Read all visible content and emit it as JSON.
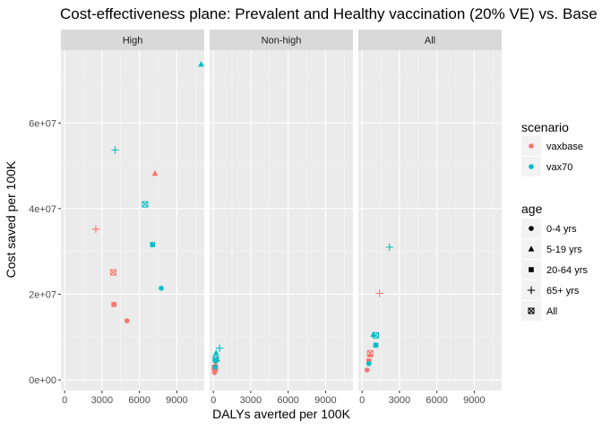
{
  "chart_data": {
    "type": "scatter",
    "title": "Cost-effectiveness plane: Prevalent and Healthy vaccination (20% VE) vs. Base",
    "xlabel": "DALYs averted per 100K",
    "ylabel": "Cost saved per 100K",
    "facets": [
      "High",
      "Non-high",
      "All"
    ],
    "xlim": [
      -300,
      11200
    ],
    "ylim": [
      -2500000,
      77000000
    ],
    "x_ticks": [
      0,
      3000,
      6000,
      9000
    ],
    "x_tick_labels": [
      "0",
      "3000",
      "6000",
      "9000"
    ],
    "y_ticks": [
      0,
      20000000,
      40000000,
      60000000
    ],
    "y_tick_labels": [
      "0e+00",
      "2e+07",
      "4e+07",
      "6e+07"
    ],
    "grid": true,
    "legend_position": "right",
    "legends": {
      "scenario": {
        "title": "scenario",
        "items": [
          {
            "label": "vaxbase",
            "color": "#F8766D"
          },
          {
            "label": "vax70",
            "color": "#00BFC4"
          }
        ]
      },
      "age": {
        "title": "age",
        "items": [
          {
            "label": "0-4 yrs",
            "shape": "circle"
          },
          {
            "label": "5-19 yrs",
            "shape": "triangle"
          },
          {
            "label": "20-64 yrs",
            "shape": "square"
          },
          {
            "label": "65+ yrs",
            "shape": "plus"
          },
          {
            "label": "All",
            "shape": "boxx"
          }
        ]
      }
    },
    "points": [
      {
        "facet": "High",
        "scenario": "vaxbase",
        "age": "0-4 yrs",
        "x": 5000,
        "y": 13800000
      },
      {
        "facet": "High",
        "scenario": "vaxbase",
        "age": "5-19 yrs",
        "x": 7250,
        "y": 48200000
      },
      {
        "facet": "High",
        "scenario": "vaxbase",
        "age": "20-64 yrs",
        "x": 3950,
        "y": 17600000
      },
      {
        "facet": "High",
        "scenario": "vaxbase",
        "age": "65+ yrs",
        "x": 2500,
        "y": 35200000
      },
      {
        "facet": "High",
        "scenario": "vaxbase",
        "age": "All",
        "x": 3900,
        "y": 25100000
      },
      {
        "facet": "High",
        "scenario": "vax70",
        "age": "0-4 yrs",
        "x": 7750,
        "y": 21400000
      },
      {
        "facet": "High",
        "scenario": "vax70",
        "age": "5-19 yrs",
        "x": 10950,
        "y": 73700000
      },
      {
        "facet": "High",
        "scenario": "vax70",
        "age": "20-64 yrs",
        "x": 7050,
        "y": 31600000
      },
      {
        "facet": "High",
        "scenario": "vax70",
        "age": "65+ yrs",
        "x": 4050,
        "y": 53700000
      },
      {
        "facet": "High",
        "scenario": "vax70",
        "age": "All",
        "x": 6450,
        "y": 41000000
      },
      {
        "facet": "Non-high",
        "scenario": "vaxbase",
        "age": "0-4 yrs",
        "x": 100,
        "y": 1700000
      },
      {
        "facet": "Non-high",
        "scenario": "vaxbase",
        "age": "5-19 yrs",
        "x": 150,
        "y": 3400000
      },
      {
        "facet": "Non-high",
        "scenario": "vaxbase",
        "age": "20-64 yrs",
        "x": 120,
        "y": 2400000
      },
      {
        "facet": "Non-high",
        "scenario": "vaxbase",
        "age": "65+ yrs",
        "x": 250,
        "y": 4500000
      },
      {
        "facet": "Non-high",
        "scenario": "vaxbase",
        "age": "All",
        "x": 130,
        "y": 2800000
      },
      {
        "facet": "Non-high",
        "scenario": "vax70",
        "age": "0-4 yrs",
        "x": 150,
        "y": 3000000
      },
      {
        "facet": "Non-high",
        "scenario": "vax70",
        "age": "5-19 yrs",
        "x": 220,
        "y": 6300000
      },
      {
        "facet": "Non-high",
        "scenario": "vax70",
        "age": "20-64 yrs",
        "x": 180,
        "y": 4500000
      },
      {
        "facet": "Non-high",
        "scenario": "vax70",
        "age": "65+ yrs",
        "x": 500,
        "y": 7400000
      },
      {
        "facet": "Non-high",
        "scenario": "vax70",
        "age": "All",
        "x": 200,
        "y": 4900000
      },
      {
        "facet": "All",
        "scenario": "vaxbase",
        "age": "0-4 yrs",
        "x": 400,
        "y": 2300000
      },
      {
        "facet": "All",
        "scenario": "vaxbase",
        "age": "5-19 yrs",
        "x": 650,
        "y": 5800000
      },
      {
        "facet": "All",
        "scenario": "vaxbase",
        "age": "20-64 yrs",
        "x": 550,
        "y": 4400000
      },
      {
        "facet": "All",
        "scenario": "vaxbase",
        "age": "65+ yrs",
        "x": 1400,
        "y": 20200000
      },
      {
        "facet": "All",
        "scenario": "vaxbase",
        "age": "All",
        "x": 650,
        "y": 6200000
      },
      {
        "facet": "All",
        "scenario": "vax70",
        "age": "0-4 yrs",
        "x": 550,
        "y": 3800000
      },
      {
        "facet": "All",
        "scenario": "vax70",
        "age": "5-19 yrs",
        "x": 900,
        "y": 10600000
      },
      {
        "facet": "All",
        "scenario": "vax70",
        "age": "20-64 yrs",
        "x": 1100,
        "y": 8100000
      },
      {
        "facet": "All",
        "scenario": "vax70",
        "age": "65+ yrs",
        "x": 2200,
        "y": 31000000
      },
      {
        "facet": "All",
        "scenario": "vax70",
        "age": "All",
        "x": 1100,
        "y": 10400000
      }
    ]
  }
}
